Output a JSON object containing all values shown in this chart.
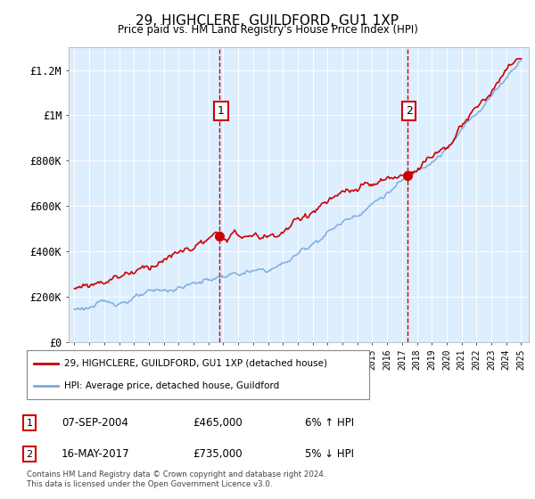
{
  "title": "29, HIGHCLERE, GUILDFORD, GU1 1XP",
  "subtitle": "Price paid vs. HM Land Registry's House Price Index (HPI)",
  "legend_line1": "29, HIGHCLERE, GUILDFORD, GU1 1XP (detached house)",
  "legend_line2": "HPI: Average price, detached house, Guildford",
  "transaction1_date": "07-SEP-2004",
  "transaction1_price": "£465,000",
  "transaction1_hpi": "6% ↑ HPI",
  "transaction2_date": "16-MAY-2017",
  "transaction2_price": "£735,000",
  "transaction2_hpi": "5% ↓ HPI",
  "footnote": "Contains HM Land Registry data © Crown copyright and database right 2024.\nThis data is licensed under the Open Government Licence v3.0.",
  "hpi_color": "#7aaadd",
  "price_color": "#cc0000",
  "vline_color": "#cc0000",
  "bg_color": "#ddeeff",
  "plot_bg": "#ffffff",
  "ylim": [
    0,
    1300000
  ],
  "yticks": [
    0,
    200000,
    400000,
    600000,
    800000,
    1000000,
    1200000
  ],
  "ytick_labels": [
    "£0",
    "£200K",
    "£400K",
    "£600K",
    "£800K",
    "£1M",
    "£1.2M"
  ],
  "t1_year": 2004.75,
  "t2_year": 2017.37,
  "t1_price": 465000,
  "t2_price": 735000,
  "year_start": 1995,
  "year_end": 2025
}
